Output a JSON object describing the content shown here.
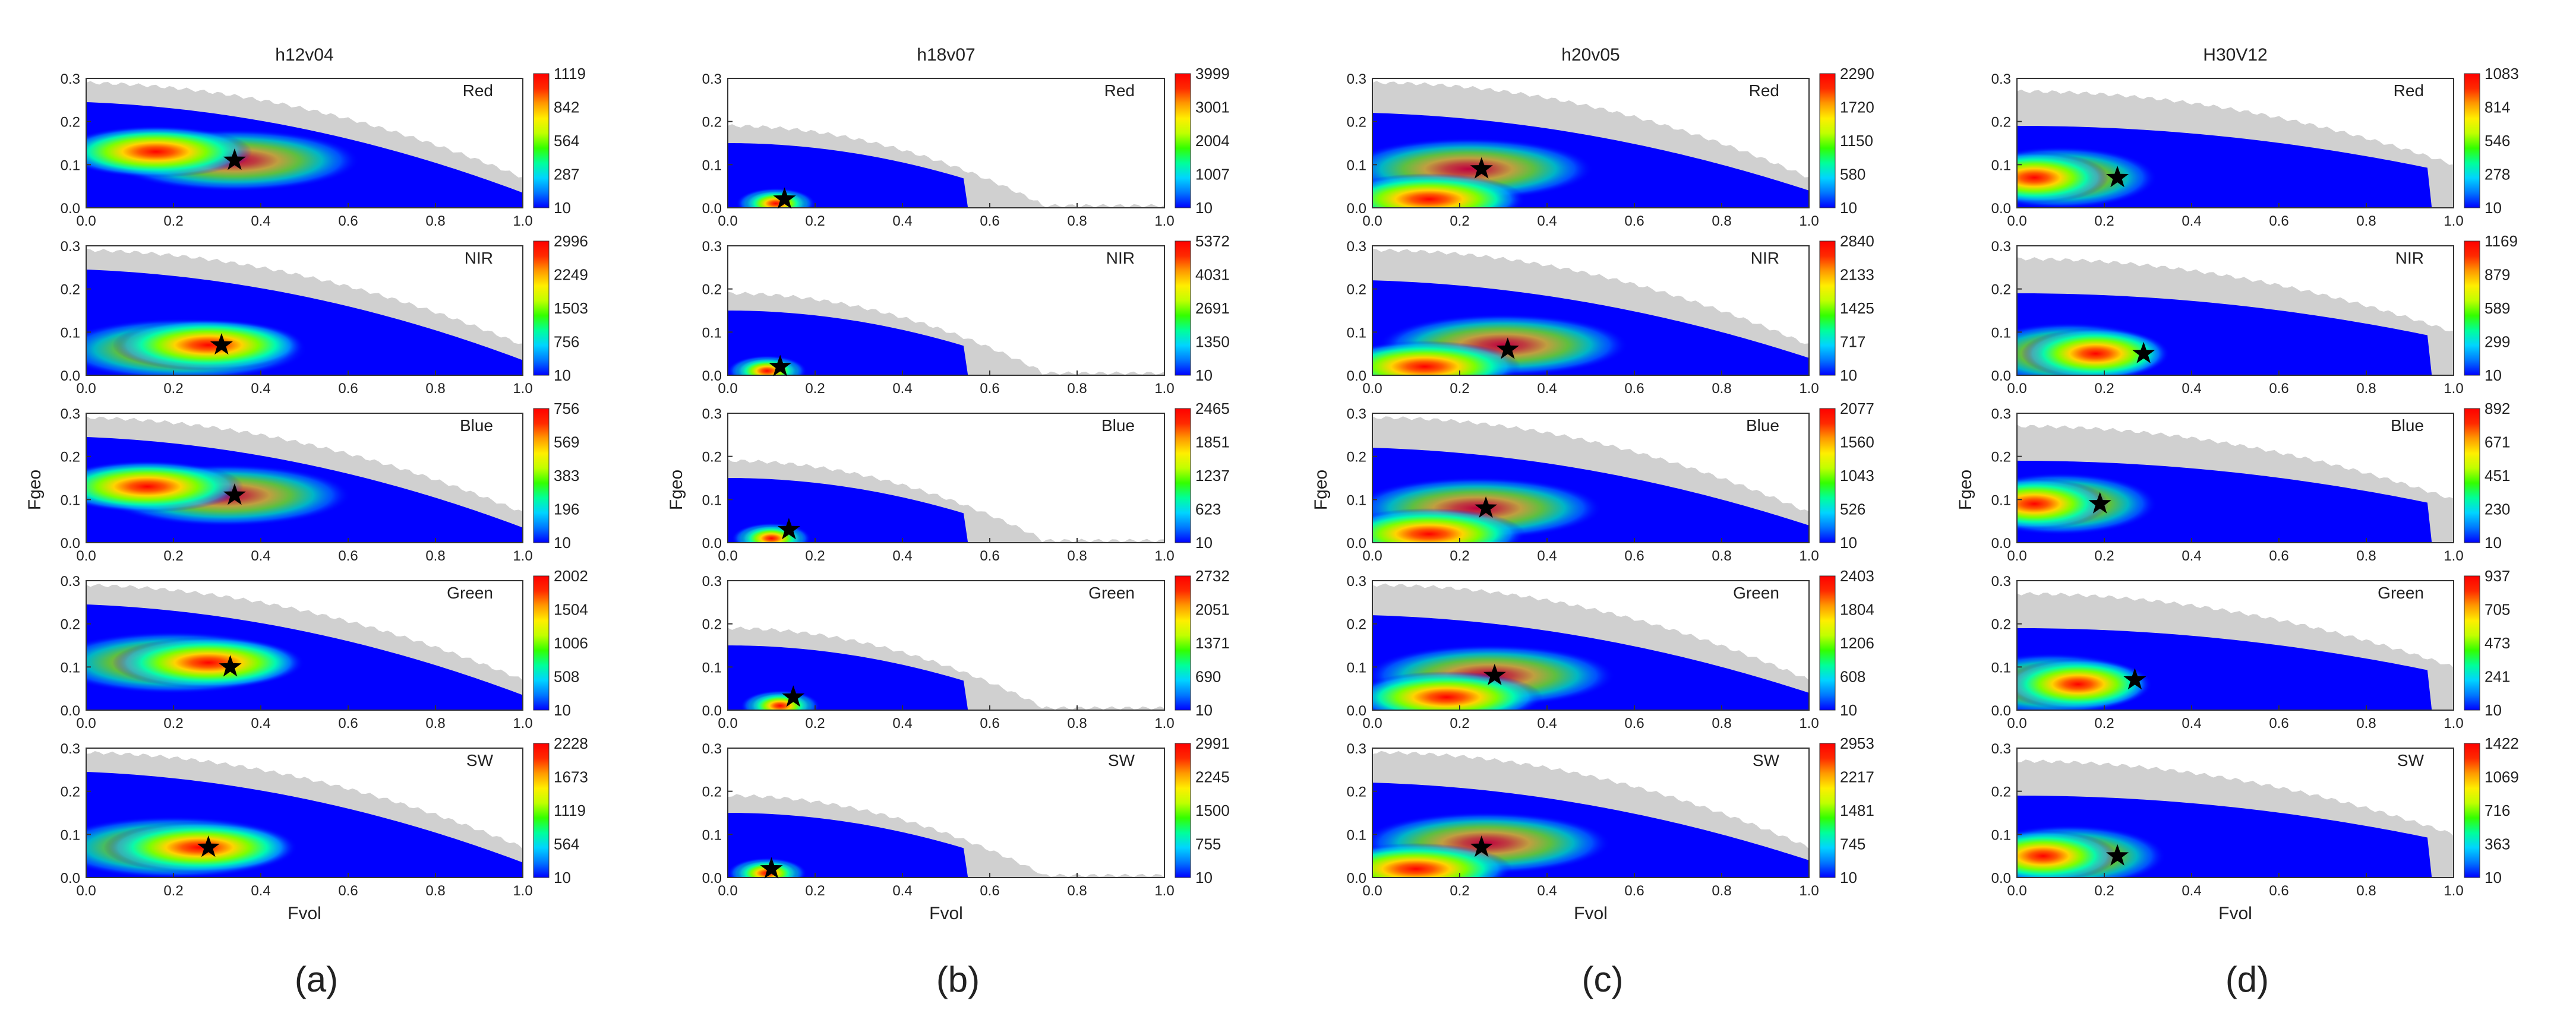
{
  "colors": {
    "empty": "#d0d0d0",
    "scale": [
      "#0000ff",
      "#0077ff",
      "#00d4ff",
      "#00ff9a",
      "#33ff00",
      "#c0ff00",
      "#ffee00",
      "#ff9900",
      "#ff2a00",
      "#ff0000"
    ]
  },
  "chart_data": [
    {
      "type": "heatmap",
      "id": "a",
      "panel_label": "(a)",
      "title": "h12v04",
      "xlabel": "Fvol",
      "ylabel": "Fgeo",
      "xlim": [
        0,
        1
      ],
      "ylim": [
        0,
        0.3
      ],
      "xticks": [
        "0.0",
        "0.2",
        "0.4",
        "0.6",
        "0.8",
        "1.0"
      ],
      "yticks": [
        "0.0",
        "0.1",
        "0.2",
        "0.3"
      ],
      "rows": [
        {
          "band": "Red",
          "colorbar": [
            "1119",
            "842",
            "564",
            "287",
            "10"
          ],
          "star": [
            0.34,
            0.11
          ],
          "hot": [
            0.16,
            0.13
          ],
          "hot2": [
            0.34,
            0.11
          ]
        },
        {
          "band": "NIR",
          "colorbar": [
            "2996",
            "2249",
            "1503",
            "756",
            "10"
          ],
          "star": [
            0.31,
            0.07
          ],
          "hot": [
            0.28,
            0.07
          ],
          "hot2": [
            0.22,
            0.06
          ]
        },
        {
          "band": "Blue",
          "colorbar": [
            "756",
            "569",
            "383",
            "196",
            "10"
          ],
          "star": [
            0.34,
            0.11
          ],
          "hot": [
            0.14,
            0.13
          ],
          "hot2": [
            0.32,
            0.11
          ]
        },
        {
          "band": "Green",
          "colorbar": [
            "2002",
            "1504",
            "1006",
            "508",
            "10"
          ],
          "star": [
            0.33,
            0.1
          ],
          "hot": [
            0.28,
            0.11
          ],
          "hot2": [
            0.2,
            0.11
          ]
        },
        {
          "band": "SW",
          "colorbar": [
            "2228",
            "1673",
            "1119",
            "564",
            "10"
          ],
          "star": [
            0.28,
            0.07
          ],
          "hot": [
            0.26,
            0.07
          ],
          "hot2": [
            0.2,
            0.07
          ]
        }
      ]
    },
    {
      "type": "heatmap",
      "id": "b",
      "panel_label": "(b)",
      "title": "h18v07",
      "xlabel": "Fvol",
      "ylabel": "Fgeo",
      "xlim": [
        0,
        1
      ],
      "ylim": [
        0,
        0.3
      ],
      "xticks": [
        "0.0",
        "0.2",
        "0.4",
        "0.6",
        "0.8",
        "1.0"
      ],
      "yticks": [
        "0.0",
        "0.1",
        "0.2",
        "0.3"
      ],
      "rows": [
        {
          "band": "Red",
          "colorbar": [
            "3999",
            "3001",
            "2004",
            "1007",
            "10"
          ],
          "star": [
            0.13,
            0.02
          ],
          "hot": [
            0.11,
            0.01
          ],
          "hot2": [
            0.11,
            0.01
          ]
        },
        {
          "band": "NIR",
          "colorbar": [
            "5372",
            "4031",
            "2691",
            "1350",
            "10"
          ],
          "star": [
            0.12,
            0.02
          ],
          "hot": [
            0.09,
            0.01
          ],
          "hot2": [
            0.09,
            0.01
          ]
        },
        {
          "band": "Blue",
          "colorbar": [
            "2465",
            "1851",
            "1237",
            "623",
            "10"
          ],
          "star": [
            0.14,
            0.03
          ],
          "hot": [
            0.1,
            0.01
          ],
          "hot2": [
            0.1,
            0.01
          ]
        },
        {
          "band": "Green",
          "colorbar": [
            "2732",
            "2051",
            "1371",
            "690",
            "10"
          ],
          "star": [
            0.15,
            0.03
          ],
          "hot": [
            0.12,
            0.01
          ],
          "hot2": [
            0.12,
            0.01
          ]
        },
        {
          "band": "SW",
          "colorbar": [
            "2991",
            "2245",
            "1500",
            "755",
            "10"
          ],
          "star": [
            0.1,
            0.02
          ],
          "hot": [
            0.09,
            0.01
          ],
          "hot2": [
            0.09,
            0.01
          ]
        }
      ]
    },
    {
      "type": "heatmap",
      "id": "c",
      "panel_label": "(c)",
      "title": "h20v05",
      "xlabel": "Fvol",
      "ylabel": "Fgeo",
      "xlim": [
        0,
        1
      ],
      "ylim": [
        0,
        0.3
      ],
      "xticks": [
        "0.0",
        "0.2",
        "0.4",
        "0.6",
        "0.8",
        "1.0"
      ],
      "yticks": [
        "0.0",
        "0.1",
        "0.2",
        "0.3"
      ],
      "rows": [
        {
          "band": "Red",
          "colorbar": [
            "2290",
            "1720",
            "1150",
            "580",
            "10"
          ],
          "star": [
            0.25,
            0.09
          ],
          "hot": [
            0.13,
            0.02
          ],
          "hot2": [
            0.22,
            0.09
          ]
        },
        {
          "band": "NIR",
          "colorbar": [
            "2840",
            "2133",
            "1425",
            "717",
            "10"
          ],
          "star": [
            0.31,
            0.06
          ],
          "hot": [
            0.12,
            0.02
          ],
          "hot2": [
            0.3,
            0.07
          ]
        },
        {
          "band": "Blue",
          "colorbar": [
            "2077",
            "1560",
            "1043",
            "526",
            "10"
          ],
          "star": [
            0.26,
            0.08
          ],
          "hot": [
            0.13,
            0.02
          ],
          "hot2": [
            0.24,
            0.08
          ]
        },
        {
          "band": "Green",
          "colorbar": [
            "2403",
            "1804",
            "1206",
            "608",
            "10"
          ],
          "star": [
            0.28,
            0.08
          ],
          "hot": [
            0.17,
            0.03
          ],
          "hot2": [
            0.27,
            0.08
          ]
        },
        {
          "band": "SW",
          "colorbar": [
            "2953",
            "2217",
            "1481",
            "745",
            "10"
          ],
          "star": [
            0.25,
            0.07
          ],
          "hot": [
            0.1,
            0.02
          ],
          "hot2": [
            0.26,
            0.08
          ]
        }
      ]
    },
    {
      "type": "heatmap",
      "id": "d",
      "panel_label": "(d)",
      "title": "H30V12",
      "xlabel": "Fvol",
      "ylabel": "Fgeo",
      "xlim": [
        0,
        1
      ],
      "ylim": [
        0,
        0.3
      ],
      "xticks": [
        "0.0",
        "0.2",
        "0.4",
        "0.6",
        "0.8",
        "1.0"
      ],
      "yticks": [
        "0.0",
        "0.1",
        "0.2",
        "0.3"
      ],
      "rows": [
        {
          "band": "Red",
          "colorbar": [
            "1083",
            "814",
            "546",
            "278",
            "10"
          ],
          "star": [
            0.23,
            0.07
          ],
          "hot": [
            0.04,
            0.07
          ],
          "hot2": [
            0.1,
            0.07
          ]
        },
        {
          "band": "NIR",
          "colorbar": [
            "1169",
            "879",
            "589",
            "299",
            "10"
          ],
          "star": [
            0.29,
            0.05
          ],
          "hot": [
            0.18,
            0.05
          ],
          "hot2": [
            0.12,
            0.05
          ]
        },
        {
          "band": "Blue",
          "colorbar": [
            "892",
            "671",
            "451",
            "230",
            "10"
          ],
          "star": [
            0.19,
            0.09
          ],
          "hot": [
            0.04,
            0.09
          ],
          "hot2": [
            0.1,
            0.09
          ]
        },
        {
          "band": "Green",
          "colorbar": [
            "937",
            "705",
            "473",
            "241",
            "10"
          ],
          "star": [
            0.27,
            0.07
          ],
          "hot": [
            0.14,
            0.06
          ],
          "hot2": [
            0.08,
            0.06
          ]
        },
        {
          "band": "SW",
          "colorbar": [
            "1422",
            "1069",
            "716",
            "363",
            "10"
          ],
          "star": [
            0.23,
            0.05
          ],
          "hot": [
            0.06,
            0.05
          ],
          "hot2": [
            0.12,
            0.05
          ]
        }
      ]
    }
  ]
}
